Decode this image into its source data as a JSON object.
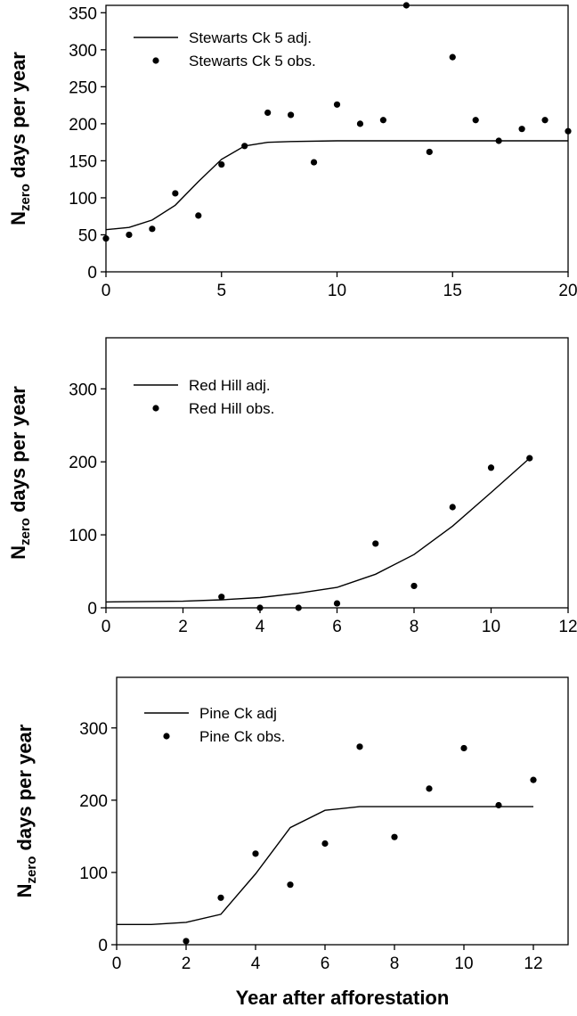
{
  "chart_data": [
    {
      "type": "scatter",
      "ylabel_main": "N",
      "ylabel_sub": "zero",
      "ylabel_rest": " days per year",
      "xlabel": "",
      "xlim": [
        0,
        20
      ],
      "ylim": [
        0,
        360
      ],
      "xticks": [
        0,
        5,
        10,
        15,
        20
      ],
      "yticks": [
        0,
        50,
        100,
        150,
        200,
        250,
        300,
        350
      ],
      "legend": {
        "placement": "top-left",
        "line_label": "Stewarts Ck 5 adj.",
        "point_label": "Stewarts Ck 5 obs."
      },
      "series": [
        {
          "name": "Stewarts Ck 5 adj.",
          "kind": "line",
          "x": [
            0,
            1,
            2,
            3,
            4,
            5,
            6,
            7,
            8,
            10,
            12,
            15,
            18,
            20
          ],
          "y": [
            57,
            60,
            70,
            90,
            122,
            152,
            170,
            175,
            176,
            177,
            177,
            177,
            177,
            177
          ]
        },
        {
          "name": "Stewarts Ck 5 obs.",
          "kind": "points",
          "x": [
            0,
            1,
            2,
            3,
            4,
            5,
            6,
            7,
            8,
            9,
            10,
            11,
            12,
            13,
            14,
            15,
            16,
            17,
            18,
            19,
            20
          ],
          "y": [
            45,
            50,
            58,
            106,
            76,
            145,
            170,
            215,
            212,
            148,
            226,
            200,
            205,
            365,
            162,
            290,
            205,
            177,
            193,
            205,
            190
          ]
        }
      ]
    },
    {
      "type": "scatter",
      "ylabel_main": "N",
      "ylabel_sub": "zero",
      "ylabel_rest": " days per year",
      "xlabel": "",
      "xlim": [
        0,
        12
      ],
      "ylim": [
        0,
        370
      ],
      "xticks": [
        0,
        2,
        4,
        6,
        8,
        10,
        12
      ],
      "yticks": [
        0,
        100,
        200,
        300
      ],
      "legend": {
        "placement": "top-left",
        "line_label": "Red Hill adj.",
        "point_label": "Red Hill obs."
      },
      "series": [
        {
          "name": "Red Hill adj.",
          "kind": "line",
          "x": [
            0,
            2,
            3,
            4,
            5,
            6,
            7,
            8,
            9,
            10,
            11
          ],
          "y": [
            8,
            9,
            11,
            14,
            20,
            28,
            46,
            73,
            112,
            158,
            205
          ]
        },
        {
          "name": "Red Hill obs.",
          "kind": "points",
          "x": [
            3,
            4,
            5,
            6,
            7,
            8,
            9,
            10,
            11
          ],
          "y": [
            15,
            0,
            0,
            6,
            88,
            30,
            138,
            192,
            205
          ]
        }
      ]
    },
    {
      "type": "scatter",
      "ylabel_main": "N",
      "ylabel_sub": "zero",
      "ylabel_rest": " days per year",
      "xlabel": "Year after afforestation",
      "xlim": [
        0,
        13
      ],
      "ylim": [
        0,
        370
      ],
      "xticks": [
        0,
        2,
        4,
        6,
        8,
        10,
        12
      ],
      "yticks": [
        0,
        100,
        200,
        300
      ],
      "legend": {
        "placement": "top-left",
        "line_label": "Pine Ck adj",
        "point_label": "Pine Ck obs."
      },
      "series": [
        {
          "name": "Pine Ck adj",
          "kind": "line",
          "x": [
            0,
            1,
            2,
            3,
            4,
            5,
            6,
            7,
            8,
            10,
            12
          ],
          "y": [
            28,
            28,
            31,
            42,
            98,
            162,
            186,
            191,
            191,
            191,
            191
          ]
        },
        {
          "name": "Pine Ck obs.",
          "kind": "points",
          "x": [
            2,
            3,
            4,
            5,
            6,
            7,
            8,
            9,
            10,
            11,
            12
          ],
          "y": [
            5,
            65,
            126,
            83,
            140,
            274,
            149,
            216,
            272,
            193,
            228
          ]
        }
      ]
    }
  ]
}
